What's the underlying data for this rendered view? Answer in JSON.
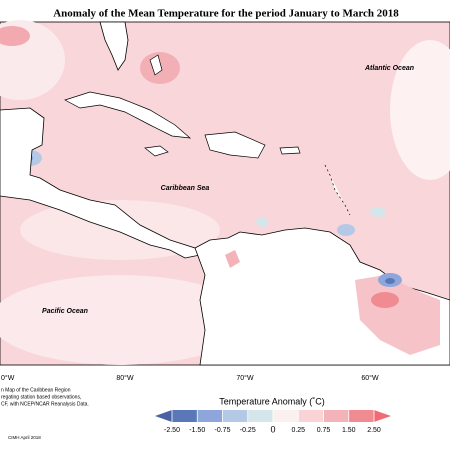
{
  "title": "Anomaly of the Mean Temperature for the period January to March 2018",
  "labels": {
    "atlantic": "Atlantic Ocean",
    "caribbean": "Caribbean Sea",
    "pacific": "Pacific Ocean"
  },
  "longitudes": [
    "0°W",
    "80°W",
    "70°W",
    "60°W"
  ],
  "caption": [
    "n Map of the Caribbean Region",
    "regating station based observations,",
    "CF, with NCEP/NCAR Reanalysis Data."
  ],
  "credit": "CIMH April 2018",
  "legend": {
    "title": "Temperature Anomaly (˚C)",
    "ticks": [
      {
        "value": -2.5,
        "label": "-2.50"
      },
      {
        "value": -1.5,
        "label": "-1.50"
      },
      {
        "value": -0.75,
        "label": "-0.75"
      },
      {
        "value": -0.25,
        "label": "-0.25"
      },
      0,
      {
        "value": 0.25,
        "label": "0.25"
      },
      {
        "value": 0.75,
        "label": "0.75"
      },
      {
        "value": 1.5,
        "label": "1.50"
      },
      {
        "value": 2.5,
        "label": "2.50"
      }
    ],
    "colors": [
      "#5a78b8",
      "#8fa6dc",
      "#b4c9e6",
      "#d4e6ea",
      "#fbf0f0",
      "#f9d3d6",
      "#f4b3b8",
      "#f08b92"
    ],
    "under": "#4a62a3",
    "over": "#ef6b76"
  }
}
